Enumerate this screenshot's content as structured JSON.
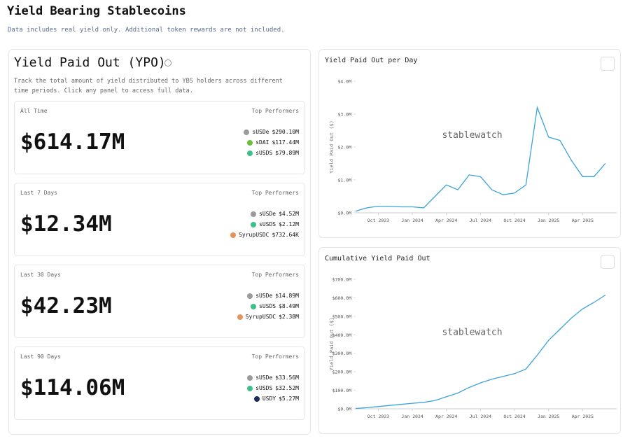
{
  "header": {
    "title": "Yield Bearing Stablecoins",
    "subtitle": "Data includes real yield only. Additional token rewards are not included."
  },
  "panel": {
    "title": "Yield Paid Out (YPO)",
    "description": "Track the total amount of yield distributed to YBS holders across different time periods. Click any panel to access full data.",
    "cards": [
      {
        "period": "All Time",
        "total": "$614.17M",
        "performers_label": "Top Performers",
        "performers": [
          {
            "name": "sUSDe",
            "value": "$290.10M",
            "icon_color": "#9a9a9a"
          },
          {
            "name": "sDAI",
            "value": "$117.44M",
            "icon_color": "#6bbf3a"
          },
          {
            "name": "sUSDS",
            "value": "$79.89M",
            "icon_color": "#3fbf8a"
          }
        ]
      },
      {
        "period": "Last 7 Days",
        "total": "$12.34M",
        "performers_label": "Top Performers",
        "performers": [
          {
            "name": "sUSDe",
            "value": "$4.52M",
            "icon_color": "#9a9a9a"
          },
          {
            "name": "sUSDS",
            "value": "$2.12M",
            "icon_color": "#3fbf8a"
          },
          {
            "name": "SyrupUSDC",
            "value": "$732.64K",
            "icon_color": "#e8935a"
          }
        ]
      },
      {
        "period": "Last 30 Days",
        "total": "$42.23M",
        "performers_label": "Top Performers",
        "performers": [
          {
            "name": "sUSDe",
            "value": "$14.89M",
            "icon_color": "#9a9a9a"
          },
          {
            "name": "sUSDS",
            "value": "$8.49M",
            "icon_color": "#3fbf8a"
          },
          {
            "name": "SyrupUSDC",
            "value": "$2.38M",
            "icon_color": "#e8935a"
          }
        ]
      },
      {
        "period": "Last 90 Days",
        "total": "$114.06M",
        "performers_label": "Top Performers",
        "performers": [
          {
            "name": "sUSDe",
            "value": "$33.56M",
            "icon_color": "#9a9a9a"
          },
          {
            "name": "sUSDS",
            "value": "$32.52M",
            "icon_color": "#3fbf8a"
          },
          {
            "name": "USDY",
            "value": "$5.27M",
            "icon_color": "#1d2b5a"
          }
        ]
      }
    ]
  },
  "chart_data": [
    {
      "type": "line",
      "title": "Yield Paid Out per Day",
      "y_label": "Yield Paid Out ($)",
      "annotation": "stablewatch",
      "color": "#3aa3dc",
      "grid": false,
      "x": [
        "2023-08",
        "2023-09",
        "2023-10",
        "2023-11",
        "2023-12",
        "2024-01",
        "2024-02",
        "2024-03",
        "2024-04",
        "2024-05",
        "2024-06",
        "2024-07",
        "2024-08",
        "2024-09",
        "2024-10",
        "2024-11",
        "2024-12",
        "2025-01",
        "2025-02",
        "2025-03",
        "2025-04",
        "2025-05",
        "2025-06"
      ],
      "values": [
        50000,
        150000,
        200000,
        200000,
        180000,
        180000,
        150000,
        500000,
        850000,
        700000,
        1150000,
        1100000,
        700000,
        550000,
        600000,
        850000,
        3200000,
        2300000,
        2200000,
        1600000,
        1100000,
        1100000,
        1500000
      ],
      "xlim": [
        "2023-08",
        "2025-07"
      ],
      "xticks": [
        {
          "value": "2023-10",
          "label": "Oct 2023"
        },
        {
          "value": "2024-01",
          "label": "Jan 2024"
        },
        {
          "value": "2024-04",
          "label": "Apr 2024"
        },
        {
          "value": "2024-07",
          "label": "Jul 2024"
        },
        {
          "value": "2024-10",
          "label": "Oct 2024"
        },
        {
          "value": "2025-01",
          "label": "Jan 2025"
        },
        {
          "value": "2025-04",
          "label": "Apr 2025"
        }
      ],
      "ylim": [
        0,
        4000000
      ],
      "yticks": [
        {
          "value": 0,
          "label": "$0.0M"
        },
        {
          "value": 1000000,
          "label": "$1.0M"
        },
        {
          "value": 2000000,
          "label": "$2.0M"
        },
        {
          "value": 3000000,
          "label": "$3.0M"
        },
        {
          "value": 4000000,
          "label": "$4.0M"
        }
      ]
    },
    {
      "type": "line",
      "title": "Cumulative Yield Paid Out",
      "y_label": "Yield Paid Out ($)",
      "annotation": "stablewatch",
      "color": "#3aa3dc",
      "grid": false,
      "x": [
        "2023-08",
        "2023-09",
        "2023-10",
        "2023-11",
        "2023-12",
        "2024-01",
        "2024-02",
        "2024-03",
        "2024-04",
        "2024-05",
        "2024-06",
        "2024-07",
        "2024-08",
        "2024-09",
        "2024-10",
        "2024-11",
        "2024-12",
        "2025-01",
        "2025-02",
        "2025-03",
        "2025-04",
        "2025-05",
        "2025-06"
      ],
      "values": [
        2000000,
        6000000,
        12000000,
        18000000,
        24000000,
        30000000,
        35000000,
        45000000,
        65000000,
        85000000,
        115000000,
        140000000,
        160000000,
        175000000,
        190000000,
        215000000,
        290000000,
        370000000,
        430000000,
        490000000,
        540000000,
        575000000,
        615000000
      ],
      "xlim": [
        "2023-08",
        "2025-07"
      ],
      "xticks": [
        {
          "value": "2023-10",
          "label": "Oct 2023"
        },
        {
          "value": "2024-01",
          "label": "Jan 2024"
        },
        {
          "value": "2024-04",
          "label": "Apr 2024"
        },
        {
          "value": "2024-07",
          "label": "Jul 2024"
        },
        {
          "value": "2024-10",
          "label": "Oct 2024"
        },
        {
          "value": "2025-01",
          "label": "Jan 2025"
        },
        {
          "value": "2025-04",
          "label": "Apr 2025"
        }
      ],
      "ylim": [
        0,
        700000000
      ],
      "yticks": [
        {
          "value": 0,
          "label": "$0.0M"
        },
        {
          "value": 100000000,
          "label": "$100.0M"
        },
        {
          "value": 200000000,
          "label": "$200.0M"
        },
        {
          "value": 300000000,
          "label": "$300.0M"
        },
        {
          "value": 400000000,
          "label": "$400.0M"
        },
        {
          "value": 500000000,
          "label": "$500.0M"
        },
        {
          "value": 600000000,
          "label": "$600.0M"
        },
        {
          "value": 700000000,
          "label": "$700.0M"
        }
      ]
    }
  ]
}
